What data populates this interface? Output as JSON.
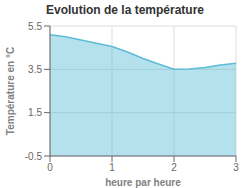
{
  "chart_data": {
    "type": "area",
    "title": "Evolution de la température",
    "xlabel": "heure par heure",
    "ylabel": "Température en °C",
    "x": [
      0,
      0.25,
      0.5,
      0.75,
      1.0,
      1.25,
      1.5,
      1.75,
      2.0,
      2.25,
      2.5,
      2.75,
      3.0
    ],
    "values": [
      5.1,
      5.0,
      4.85,
      4.7,
      4.55,
      4.3,
      4.0,
      3.75,
      3.5,
      3.52,
      3.58,
      3.7,
      3.78
    ],
    "color": "#5bbcd6",
    "xlim": [
      0,
      3
    ],
    "ylim": [
      -0.5,
      5.5
    ],
    "xticks": [
      0,
      1,
      2,
      3
    ],
    "yticks": [
      -0.5,
      1.5,
      3.5,
      5.5
    ],
    "grid": true
  }
}
